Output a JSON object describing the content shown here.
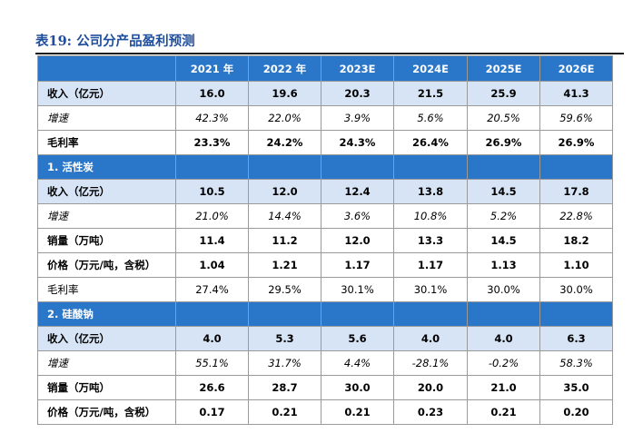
{
  "title": "表19:  公司分产品盈利预测",
  "columns": [
    "2021 年",
    "2022 年",
    "2023E",
    "2024E",
    "2025E",
    "2026E"
  ],
  "rows": [
    {
      "type": "blue",
      "label": "收入（亿元）",
      "values": [
        "16.0",
        "19.6",
        "20.3",
        "21.5",
        "25.9",
        "41.3"
      ]
    },
    {
      "type": "italic",
      "label": "增速",
      "values": [
        "42.3%",
        "22.0%",
        "3.9%",
        "5.6%",
        "20.5%",
        "59.6%"
      ]
    },
    {
      "type": "bold",
      "label": "毛利率",
      "values": [
        "23.3%",
        "24.2%",
        "24.3%",
        "26.4%",
        "26.9%",
        "26.9%"
      ]
    },
    {
      "type": "section",
      "label": "1. 活性炭"
    },
    {
      "type": "blue",
      "label": "收入（亿元）",
      "values": [
        "10.5",
        "12.0",
        "12.4",
        "13.8",
        "14.5",
        "17.8"
      ]
    },
    {
      "type": "italic",
      "label": "增速",
      "values": [
        "21.0%",
        "14.4%",
        "3.6%",
        "10.8%",
        "5.2%",
        "22.8%"
      ]
    },
    {
      "type": "bold",
      "label": "销量（万吨）",
      "values": [
        "11.4",
        "11.2",
        "12.0",
        "13.3",
        "14.5",
        "18.2"
      ]
    },
    {
      "type": "bold",
      "label": "价格（万元/吨，含税）",
      "values": [
        "1.04",
        "1.21",
        "1.17",
        "1.17",
        "1.13",
        "1.10"
      ]
    },
    {
      "type": "plain",
      "label": "毛利率",
      "values": [
        "27.4%",
        "29.5%",
        "30.1%",
        "30.1%",
        "30.0%",
        "30.0%"
      ]
    },
    {
      "type": "section",
      "label": "2. 硅酸钠"
    },
    {
      "type": "blue",
      "label": "收入（亿元）",
      "values": [
        "4.0",
        "5.3",
        "5.6",
        "4.0",
        "4.0",
        "6.3"
      ]
    },
    {
      "type": "italic",
      "label": "增速",
      "values": [
        "55.1%",
        "31.7%",
        "4.4%",
        "-28.1%",
        "-0.2%",
        "58.3%"
      ]
    },
    {
      "type": "bold",
      "label": "销量（万吨）",
      "values": [
        "26.6",
        "28.7",
        "30.0",
        "20.0",
        "21.0",
        "35.0"
      ]
    },
    {
      "type": "bold",
      "label": "价格（万元/吨，含税）",
      "values": [
        "0.17",
        "0.21",
        "0.21",
        "0.23",
        "0.21",
        "0.20"
      ]
    }
  ]
}
